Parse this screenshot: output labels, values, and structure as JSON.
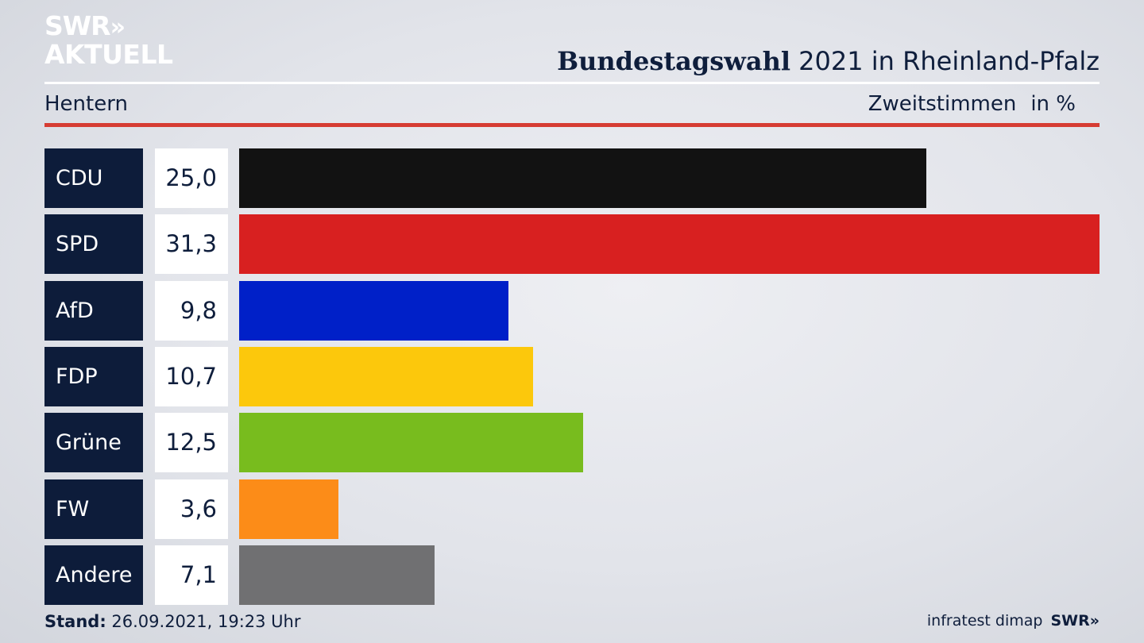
{
  "logo": {
    "line1": "SWR",
    "arrows": "»",
    "line2": "AKTUELL"
  },
  "header": {
    "title_bold": "Bundestagswahl",
    "title_rest": " 2021 in Rheinland-Pfalz"
  },
  "subheader": {
    "location": "Hentern",
    "measure": "Zweitstimmen",
    "unit": "in %"
  },
  "footer": {
    "stand_label": "Stand:",
    "stand_value": " 26.09.2021, 19:23 Uhr",
    "source": "infratest dimap",
    "source_logo": "SWR»"
  },
  "chart_data": {
    "type": "bar",
    "orientation": "horizontal",
    "categories": [
      "CDU",
      "SPD",
      "AfD",
      "FDP",
      "Grüne",
      "FW",
      "Andere"
    ],
    "values": [
      25.0,
      31.3,
      9.8,
      10.7,
      12.5,
      3.6,
      7.1
    ],
    "value_labels": [
      "25,0",
      "31,3",
      "9,8",
      "10,7",
      "12,5",
      "3,6",
      "7,1"
    ],
    "colors": [
      "#121212",
      "#d82020",
      "#0020c8",
      "#fcc80c",
      "#78bc1e",
      "#fc8c18",
      "#707072"
    ],
    "xlim": [
      0,
      31.3
    ]
  }
}
